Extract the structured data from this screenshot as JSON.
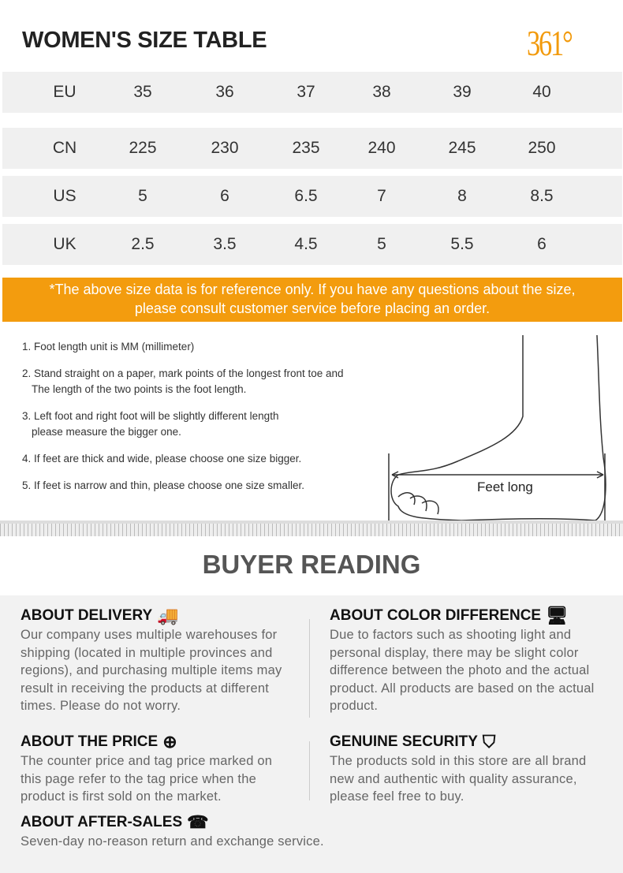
{
  "header": {
    "title": "WOMEN'S SIZE TABLE",
    "logo": "361°"
  },
  "size_table": [
    {
      "label": "EU",
      "values": [
        "35",
        "36",
        "37",
        "38",
        "39",
        "40"
      ]
    },
    {
      "label": "CN",
      "values": [
        "225",
        "230",
        "235",
        "240",
        "245",
        "250"
      ]
    },
    {
      "label": "US",
      "values": [
        "5",
        "6",
        "6.5",
        "7",
        "8",
        "8.5"
      ]
    },
    {
      "label": "UK",
      "values": [
        "2.5",
        "3.5",
        "4.5",
        "5",
        "5.5",
        "6"
      ]
    }
  ],
  "notice": {
    "line1": "*The above size data is for reference only. If you have any questions about the size,",
    "line2": "please consult customer service before placing an order."
  },
  "tips": [
    "1. Foot length unit is MM (millimeter)",
    "2. Stand straight on a paper, mark points of the longest front toe and",
    "The length of the two points is the foot length.",
    "3. Left foot and right foot will be slightly different length",
    "please measure the bigger one.",
    "4. If feet are thick and wide, please choose one size bigger.",
    "5. If feet is narrow and thin, please choose one size smaller."
  ],
  "diagram_label": "Feet long",
  "buyer_reading": {
    "title": "BUYER READING",
    "delivery": {
      "title": "ABOUT DELIVERY",
      "icon": "truck-icon",
      "text": "Our company uses multiple warehouses for shipping (located in multiple provinces and regions), and purchasing multiple items may result in receiving the products at different times. Please do not worry."
    },
    "color": {
      "title": "ABOUT COLOR DIFFERENCE",
      "icon": "monitor-icon",
      "text": "Due to factors such as shooting light and personal display, there may be slight color difference between the photo and the actual product. All products are based on the actual product."
    },
    "price": {
      "title": "ABOUT THE PRICE",
      "icon": "yen-icon",
      "text": "The counter price and tag price marked on this page refer to the tag price when the product is first sold on the market."
    },
    "security": {
      "title": "GENUINE SECURITY",
      "icon": "genuine-icon",
      "text": "The products sold in this store are all brand new and authentic with quality assurance, please feel free to buy."
    },
    "after_sales": {
      "title": "ABOUT AFTER-SALES",
      "icon": "phone-icon",
      "text": "Seven-day no-reason return and exchange service."
    }
  },
  "colors": {
    "accent": "#f39c0e"
  }
}
